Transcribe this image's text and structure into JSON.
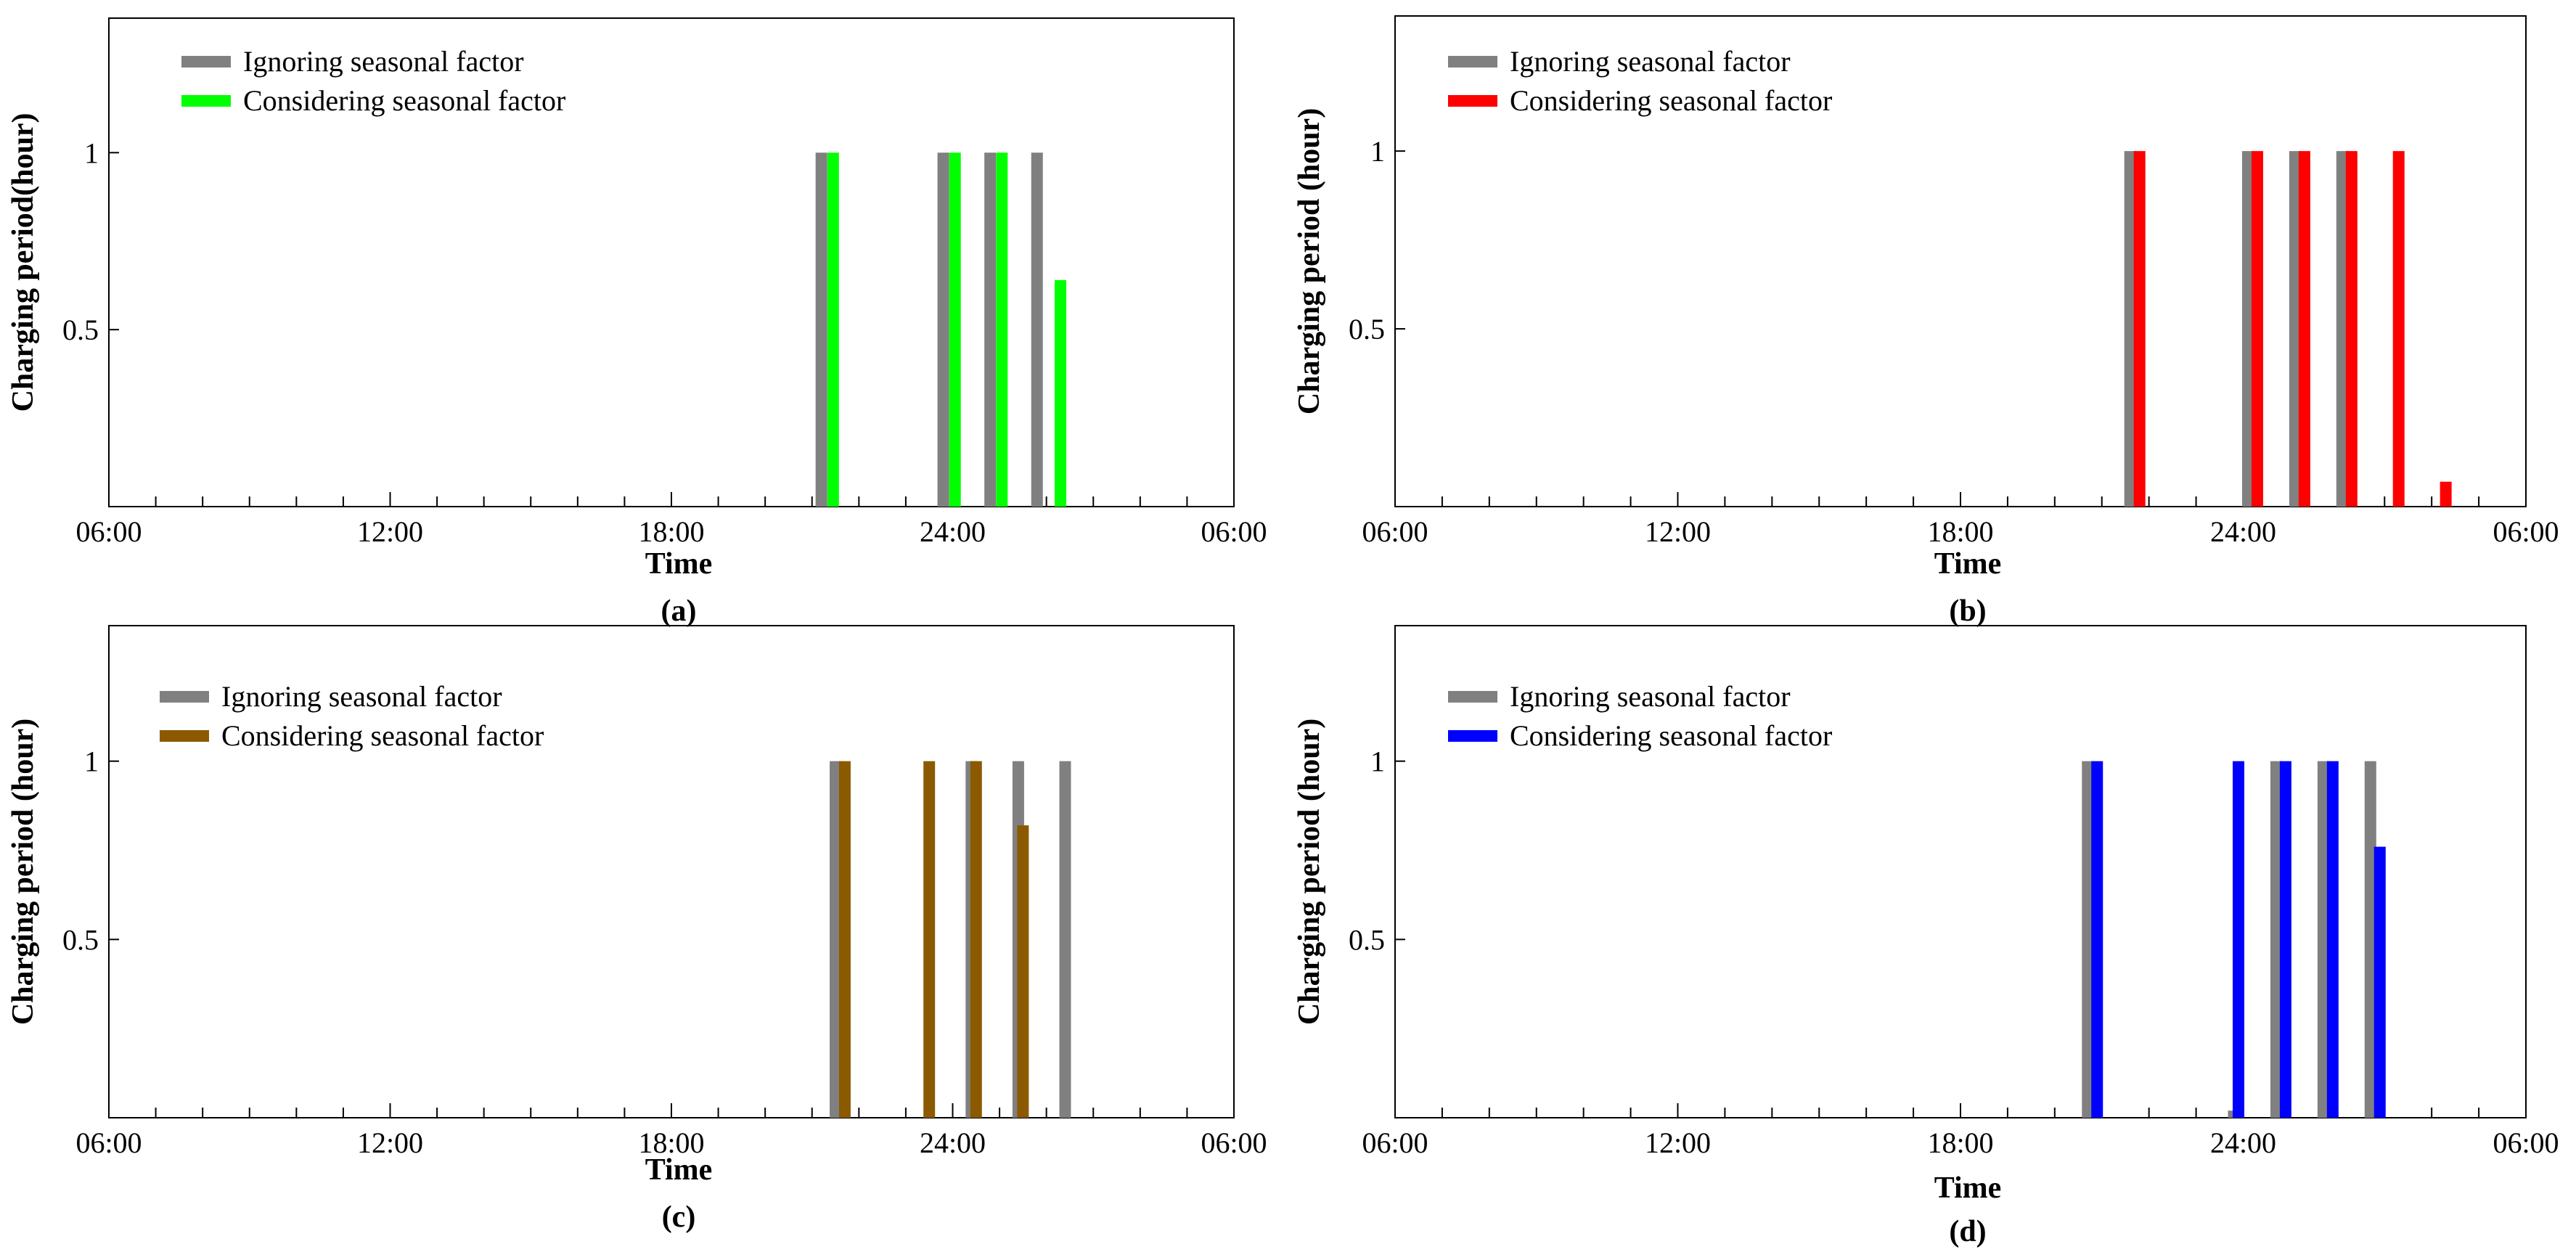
{
  "figure": {
    "panels": [
      "a",
      "b",
      "c",
      "d"
    ]
  },
  "chart_data": [
    {
      "id": "a",
      "type": "bar",
      "panel_label": "(a)",
      "xlabel": "Time",
      "ylabel": "Charging period(hour)",
      "x_tick_labels": [
        "06:00",
        "12:00",
        "18:00",
        "24:00",
        "06:00"
      ],
      "x_tick_hours": [
        0,
        6,
        12,
        18,
        24
      ],
      "xlim_hours": [
        0,
        24
      ],
      "ylim": [
        0,
        1.38
      ],
      "y_ticks": [
        1,
        0.5
      ],
      "y_tick_labels": [
        "1",
        "0.5"
      ],
      "legend": [
        "Ignoring seasonal factor",
        "Considering seasonal factor"
      ],
      "colors": [
        "#808080",
        "#00ff00"
      ],
      "series": [
        {
          "name": "Ignoring seasonal factor",
          "x_hours": [
            15.2,
            17.8,
            18.8,
            19.8
          ],
          "values": [
            1,
            1,
            1,
            1
          ]
        },
        {
          "name": "Considering seasonal factor",
          "x_hours": [
            15.45,
            18.05,
            19.05,
            20.3
          ],
          "values": [
            1,
            1,
            1,
            0.64
          ]
        }
      ]
    },
    {
      "id": "b",
      "type": "bar",
      "panel_label": "(b)",
      "xlabel": "Time",
      "ylabel": "Charging period (hour)",
      "x_tick_labels": [
        "06:00",
        "12:00",
        "18:00",
        "24:00",
        "06:00"
      ],
      "x_tick_hours": [
        0,
        6,
        12,
        18,
        24
      ],
      "xlim_hours": [
        0,
        24
      ],
      "ylim": [
        0,
        1.38
      ],
      "y_ticks": [
        1,
        0.5
      ],
      "y_tick_labels": [
        "1",
        "0.5"
      ],
      "legend": [
        "Ignoring seasonal factor",
        "Considering seasonal factor"
      ],
      "colors": [
        "#808080",
        "#ff0000"
      ],
      "series": [
        {
          "name": "Ignoring seasonal factor",
          "x_hours": [
            15.6,
            18.1,
            19.1,
            20.1
          ],
          "values": [
            1,
            1,
            1,
            1
          ]
        },
        {
          "name": "Considering seasonal factor",
          "x_hours": [
            15.8,
            18.3,
            19.3,
            20.3,
            21.3,
            22.3
          ],
          "values": [
            1,
            1,
            1,
            1,
            1,
            0.07
          ]
        }
      ]
    },
    {
      "id": "c",
      "type": "bar",
      "panel_label": "(c)",
      "xlabel": "Time",
      "ylabel": "Charging period (hour)",
      "x_tick_labels": [
        "06:00",
        "12:00",
        "18:00",
        "24:00",
        "06:00"
      ],
      "x_tick_hours": [
        0,
        6,
        12,
        18,
        24
      ],
      "xlim_hours": [
        0,
        24
      ],
      "ylim": [
        0,
        1.38
      ],
      "y_ticks": [
        1,
        0.5
      ],
      "y_tick_labels": [
        "1",
        "0.5"
      ],
      "legend": [
        "Ignoring seasonal factor",
        "Considering seasonal factor"
      ],
      "colors": [
        "#808080",
        "#8b5a00"
      ],
      "series": [
        {
          "name": "Ignoring seasonal factor",
          "x_hours": [
            15.5,
            17.8,
            18.4,
            19.4,
            20.4
          ],
          "values": [
            1,
            0,
            1,
            1,
            1
          ]
        },
        {
          "name": "Considering seasonal factor",
          "x_hours": [
            15.7,
            17.5,
            18.5,
            19.5
          ],
          "values": [
            1,
            1,
            1,
            0.82
          ]
        }
      ]
    },
    {
      "id": "d",
      "type": "bar",
      "panel_label": "(d)",
      "xlabel": "Time",
      "ylabel": "Charging period (hour)",
      "x_tick_labels": [
        "06:00",
        "12:00",
        "18:00",
        "24:00",
        "06:00"
      ],
      "x_tick_hours": [
        0,
        6,
        12,
        18,
        24
      ],
      "xlim_hours": [
        0,
        24
      ],
      "ylim": [
        0,
        1.38
      ],
      "y_ticks": [
        1,
        0.5
      ],
      "y_tick_labels": [
        "1",
        "0.5"
      ],
      "legend": [
        "Ignoring seasonal factor",
        "Considering seasonal factor"
      ],
      "colors": [
        "#808080",
        "#0000ff"
      ],
      "series": [
        {
          "name": "Ignoring seasonal factor",
          "x_hours": [
            14.7,
            17.8,
            18.7,
            19.7,
            20.7
          ],
          "values": [
            1,
            0.02,
            1,
            1,
            1
          ]
        },
        {
          "name": "Considering seasonal factor",
          "x_hours": [
            14.9,
            17.9,
            18.9,
            19.9,
            20.9
          ],
          "values": [
            1,
            1,
            1,
            1,
            0.76
          ]
        }
      ]
    }
  ]
}
